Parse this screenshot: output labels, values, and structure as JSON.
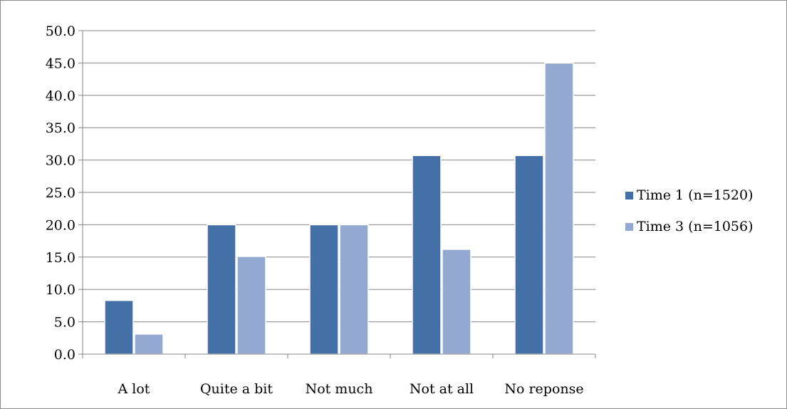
{
  "chart_data": {
    "type": "bar",
    "categories": [
      "A lot",
      "Quite a bit",
      "Not much",
      "Not at all",
      "No reponse"
    ],
    "series": [
      {
        "name": "Time 1 (n=1520)",
        "color": "#4470a7",
        "values": [
          8.3,
          20.0,
          20.0,
          30.7,
          30.7
        ]
      },
      {
        "name": "Time 3 (n=1056)",
        "color": "#94a9d2",
        "values": [
          3.1,
          15.1,
          20.0,
          16.2,
          45.0
        ]
      }
    ],
    "ylim": [
      0,
      50
    ],
    "yticks": [
      "0.0",
      "5.0",
      "10.0",
      "15.0",
      "20.0",
      "25.0",
      "30.0",
      "35.0",
      "40.0",
      "45.0",
      "50.0"
    ],
    "grid": true,
    "legend_position": "right"
  }
}
